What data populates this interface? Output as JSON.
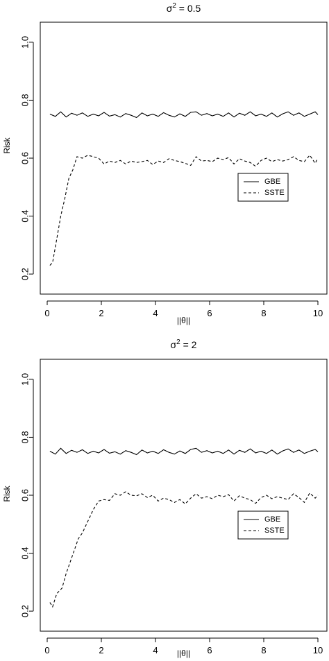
{
  "chart_data": [
    {
      "type": "line",
      "title_prefix": "σ",
      "title_sup": "2",
      "title_suffix": " = 0.5",
      "xlabel": "||θ||",
      "ylabel": "Risk",
      "xlim": [
        0,
        10
      ],
      "ylim": [
        0.15,
        1.05
      ],
      "xticks": [
        0,
        2,
        4,
        6,
        8,
        10
      ],
      "yticks": [
        0.2,
        0.4,
        0.6,
        0.8,
        1.0
      ],
      "ytick_labels": [
        "0.2",
        "0.4",
        "0.6",
        "0.8",
        "1.0"
      ],
      "legend_position": "right",
      "series": [
        {
          "name": "GBE",
          "dash": "solid",
          "x": [
            0.1,
            0.3,
            0.5,
            0.7,
            0.9,
            1.1,
            1.3,
            1.5,
            1.7,
            1.9,
            2.1,
            2.3,
            2.5,
            2.7,
            2.9,
            3.1,
            3.3,
            3.5,
            3.7,
            3.9,
            4.1,
            4.3,
            4.5,
            4.7,
            4.9,
            5.1,
            5.3,
            5.5,
            5.7,
            5.9,
            6.1,
            6.3,
            6.5,
            6.7,
            6.9,
            7.1,
            7.3,
            7.5,
            7.7,
            7.9,
            8.1,
            8.3,
            8.5,
            8.7,
            8.9,
            9.1,
            9.3,
            9.5,
            9.7,
            9.9,
            10.0
          ],
          "y": [
            0.752,
            0.744,
            0.76,
            0.742,
            0.755,
            0.748,
            0.756,
            0.744,
            0.752,
            0.746,
            0.758,
            0.745,
            0.75,
            0.742,
            0.754,
            0.748,
            0.74,
            0.756,
            0.746,
            0.752,
            0.744,
            0.757,
            0.748,
            0.742,
            0.753,
            0.744,
            0.758,
            0.76,
            0.748,
            0.754,
            0.746,
            0.752,
            0.744,
            0.756,
            0.742,
            0.755,
            0.748,
            0.76,
            0.746,
            0.752,
            0.744,
            0.756,
            0.742,
            0.753,
            0.76,
            0.748,
            0.756,
            0.744,
            0.752,
            0.76,
            0.75
          ]
        },
        {
          "name": "SSTE",
          "dash": "dashed",
          "x": [
            0.1,
            0.2,
            0.35,
            0.5,
            0.65,
            0.8,
            0.95,
            1.1,
            1.3,
            1.5,
            1.7,
            1.9,
            2.1,
            2.3,
            2.5,
            2.7,
            2.9,
            3.1,
            3.3,
            3.5,
            3.7,
            3.9,
            4.1,
            4.3,
            4.5,
            4.7,
            4.9,
            5.1,
            5.3,
            5.5,
            5.7,
            5.9,
            6.1,
            6.3,
            6.5,
            6.7,
            6.9,
            7.1,
            7.3,
            7.5,
            7.7,
            7.9,
            8.1,
            8.3,
            8.5,
            8.7,
            8.9,
            9.1,
            9.3,
            9.5,
            9.7,
            9.9,
            10.0
          ],
          "y": [
            0.23,
            0.24,
            0.32,
            0.4,
            0.46,
            0.53,
            0.56,
            0.605,
            0.6,
            0.61,
            0.605,
            0.6,
            0.58,
            0.59,
            0.585,
            0.592,
            0.58,
            0.59,
            0.585,
            0.588,
            0.592,
            0.578,
            0.59,
            0.585,
            0.598,
            0.592,
            0.588,
            0.582,
            0.575,
            0.605,
            0.59,
            0.592,
            0.588,
            0.6,
            0.595,
            0.602,
            0.58,
            0.598,
            0.59,
            0.585,
            0.572,
            0.592,
            0.6,
            0.588,
            0.595,
            0.59,
            0.595,
            0.605,
            0.592,
            0.588,
            0.61,
            0.582,
            0.6
          ]
        }
      ]
    },
    {
      "type": "line",
      "title_prefix": "σ",
      "title_sup": "2",
      "title_suffix": " = 2",
      "xlabel": "||θ||",
      "ylabel": "Risk",
      "xlim": [
        0,
        10
      ],
      "ylim": [
        0.15,
        1.05
      ],
      "xticks": [
        0,
        2,
        4,
        6,
        8,
        10
      ],
      "yticks": [
        0.2,
        0.4,
        0.6,
        0.8,
        1.0
      ],
      "ytick_labels": [
        "0.2",
        "0.4",
        "0.6",
        "0.8",
        "1.0"
      ],
      "legend_position": "right",
      "series": [
        {
          "name": "GBE",
          "dash": "solid",
          "x": [
            0.1,
            0.3,
            0.5,
            0.7,
            0.9,
            1.1,
            1.3,
            1.5,
            1.7,
            1.9,
            2.1,
            2.3,
            2.5,
            2.7,
            2.9,
            3.1,
            3.3,
            3.5,
            3.7,
            3.9,
            4.1,
            4.3,
            4.5,
            4.7,
            4.9,
            5.1,
            5.3,
            5.5,
            5.7,
            5.9,
            6.1,
            6.3,
            6.5,
            6.7,
            6.9,
            7.1,
            7.3,
            7.5,
            7.7,
            7.9,
            8.1,
            8.3,
            8.5,
            8.7,
            8.9,
            9.1,
            9.3,
            9.5,
            9.7,
            9.9,
            10.0
          ],
          "y": [
            0.752,
            0.742,
            0.762,
            0.744,
            0.755,
            0.748,
            0.757,
            0.744,
            0.752,
            0.746,
            0.758,
            0.745,
            0.75,
            0.742,
            0.754,
            0.748,
            0.74,
            0.756,
            0.746,
            0.752,
            0.744,
            0.757,
            0.748,
            0.742,
            0.753,
            0.744,
            0.758,
            0.762,
            0.748,
            0.754,
            0.746,
            0.752,
            0.744,
            0.756,
            0.742,
            0.755,
            0.748,
            0.76,
            0.746,
            0.752,
            0.744,
            0.756,
            0.742,
            0.753,
            0.76,
            0.748,
            0.756,
            0.744,
            0.752,
            0.758,
            0.75
          ]
        },
        {
          "name": "SSTE",
          "dash": "dashed",
          "x": [
            0.1,
            0.2,
            0.35,
            0.55,
            0.7,
            0.85,
            1.0,
            1.15,
            1.3,
            1.5,
            1.7,
            1.9,
            2.1,
            2.3,
            2.5,
            2.7,
            2.9,
            3.1,
            3.3,
            3.5,
            3.7,
            3.9,
            4.1,
            4.3,
            4.5,
            4.7,
            4.9,
            5.1,
            5.3,
            5.5,
            5.7,
            5.9,
            6.1,
            6.3,
            6.5,
            6.7,
            6.9,
            7.1,
            7.3,
            7.5,
            7.7,
            7.9,
            8.1,
            8.3,
            8.5,
            8.7,
            8.9,
            9.1,
            9.3,
            9.5,
            9.7,
            9.9,
            10.0
          ],
          "y": [
            0.23,
            0.215,
            0.26,
            0.28,
            0.33,
            0.37,
            0.41,
            0.45,
            0.47,
            0.51,
            0.55,
            0.58,
            0.585,
            0.582,
            0.605,
            0.6,
            0.612,
            0.6,
            0.598,
            0.605,
            0.592,
            0.6,
            0.58,
            0.59,
            0.585,
            0.575,
            0.585,
            0.57,
            0.59,
            0.605,
            0.59,
            0.595,
            0.588,
            0.6,
            0.595,
            0.602,
            0.58,
            0.598,
            0.59,
            0.585,
            0.572,
            0.592,
            0.6,
            0.588,
            0.595,
            0.59,
            0.585,
            0.605,
            0.592,
            0.575,
            0.608,
            0.59,
            0.6
          ]
        }
      ]
    }
  ]
}
